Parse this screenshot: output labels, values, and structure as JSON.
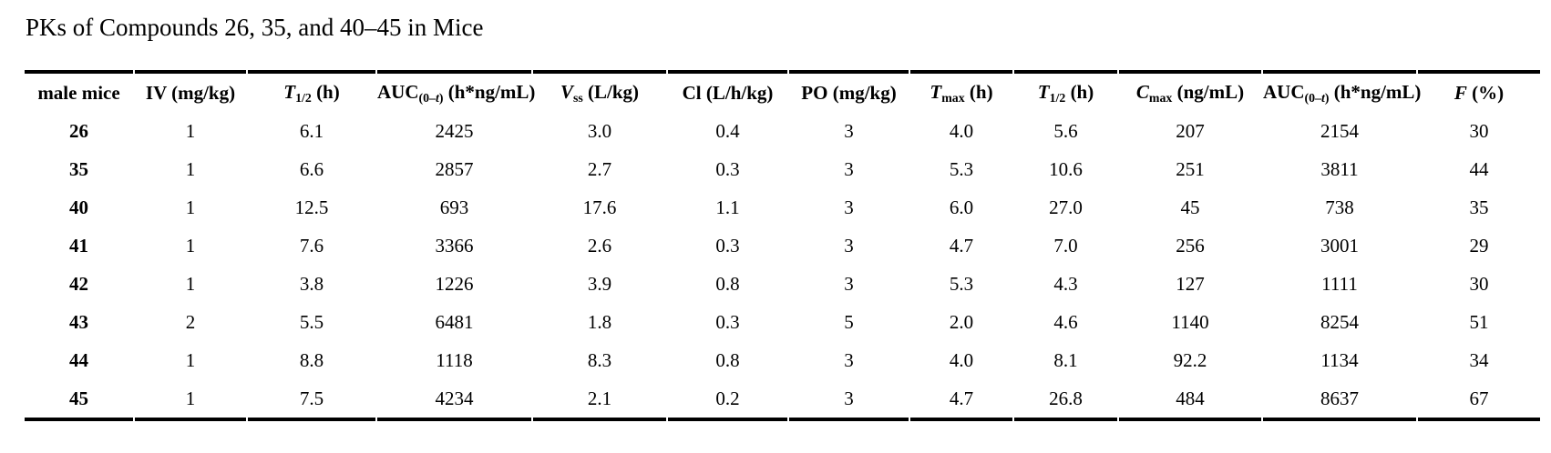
{
  "title": "PKs of Compounds 26, 35, and 40–45 in Mice",
  "table": {
    "columns": [
      {
        "id": "male-mice",
        "pre": "male mice"
      },
      {
        "id": "iv-dose",
        "pre": "IV (mg/kg)"
      },
      {
        "id": "t-half-iv",
        "it": "T",
        "sub_pre": "1/2",
        "post": " (h)"
      },
      {
        "id": "auc-iv",
        "pre": "AUC",
        "sub_pre": "(0–",
        "sub_it": "t",
        "sub_post": ")",
        "post": " (h*ng/mL)"
      },
      {
        "id": "vss",
        "it": "V",
        "sub_pre": "ss",
        "post": " (L/kg)"
      },
      {
        "id": "clearance",
        "pre": "Cl (L/h/kg)"
      },
      {
        "id": "po-dose",
        "pre": "PO (mg/kg)"
      },
      {
        "id": "tmax",
        "it": "T",
        "sub_pre": "max",
        "post": " (h)"
      },
      {
        "id": "t-half-po",
        "it": "T",
        "sub_pre": "1/2",
        "post": " (h)"
      },
      {
        "id": "cmax",
        "it": "C",
        "sub_pre": "max",
        "post": " (ng/mL)"
      },
      {
        "id": "auc-po",
        "pre": "AUC",
        "sub_pre": "(0–",
        "sub_it": "t",
        "sub_post": ")",
        "post": " (h*ng/mL)"
      },
      {
        "id": "f-percent",
        "it": "F",
        "post": " (%)"
      }
    ],
    "rows": [
      [
        "26",
        "1",
        "6.1",
        "2425",
        "3.0",
        "0.4",
        "3",
        "4.0",
        "5.6",
        "207",
        "2154",
        "30"
      ],
      [
        "35",
        "1",
        "6.6",
        "2857",
        "2.7",
        "0.3",
        "3",
        "5.3",
        "10.6",
        "251",
        "3811",
        "44"
      ],
      [
        "40",
        "1",
        "12.5",
        "693",
        "17.6",
        "1.1",
        "3",
        "6.0",
        "27.0",
        "45",
        "738",
        "35"
      ],
      [
        "41",
        "1",
        "7.6",
        "3366",
        "2.6",
        "0.3",
        "3",
        "4.7",
        "7.0",
        "256",
        "3001",
        "29"
      ],
      [
        "42",
        "1",
        "3.8",
        "1226",
        "3.9",
        "0.8",
        "3",
        "5.3",
        "4.3",
        "127",
        "1111",
        "30"
      ],
      [
        "43",
        "2",
        "5.5",
        "6481",
        "1.8",
        "0.3",
        "5",
        "2.0",
        "4.6",
        "1140",
        "8254",
        "51"
      ],
      [
        "44",
        "1",
        "8.8",
        "1118",
        "8.3",
        "0.8",
        "3",
        "4.0",
        "8.1",
        "92.2",
        "1134",
        "34"
      ],
      [
        "45",
        "1",
        "7.5",
        "4234",
        "2.1",
        "0.2",
        "3",
        "4.7",
        "26.8",
        "484",
        "8637",
        "67"
      ]
    ],
    "rule_color": "#000000",
    "text_color": "#000000",
    "background_color": "#ffffff"
  }
}
